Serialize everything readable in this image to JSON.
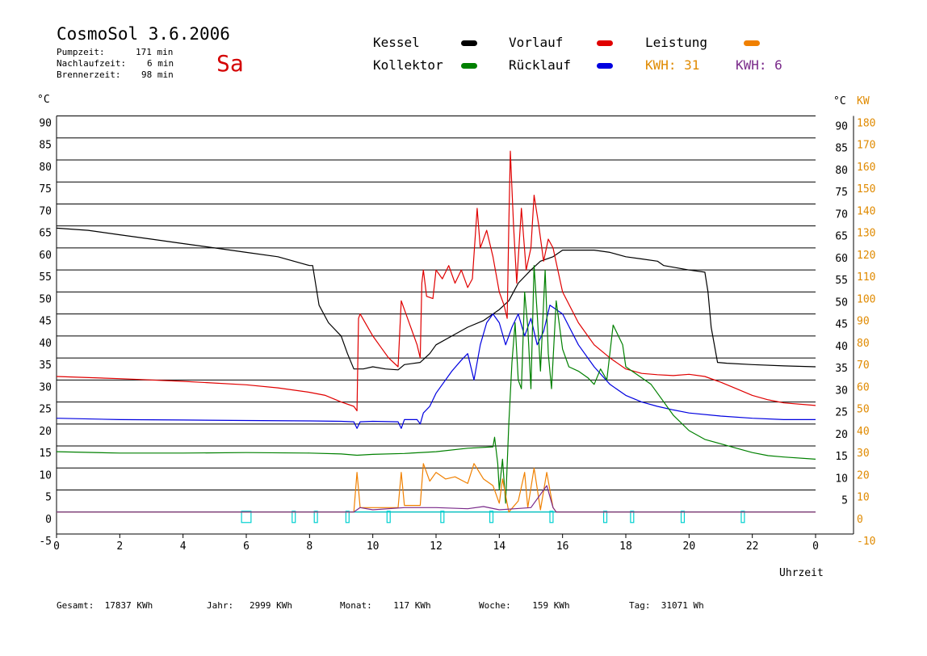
{
  "header": {
    "title": "CosmoSol 3.6.2006",
    "day": "Sa",
    "info": [
      {
        "label": "Pumpzeit:",
        "value": "171 min"
      },
      {
        "label": "Nachlaufzeit:",
        "value": "6 min"
      },
      {
        "label": "Brennerzeit:",
        "value": "98 min"
      }
    ]
  },
  "legend": {
    "items": [
      {
        "label": "Kessel",
        "color": "#000000"
      },
      {
        "label": "Kollektor",
        "color": "#008000"
      },
      {
        "label": "Vorlauf",
        "color": "#e00000"
      },
      {
        "label": "Rücklauf",
        "color": "#0000e0"
      },
      {
        "label": "Leistung",
        "color": "#f08000"
      }
    ],
    "kwh": [
      {
        "label": "KWH:",
        "value": "31",
        "color": "#e08a00"
      },
      {
        "label": "KWH:",
        "value": "6",
        "color": "#7a2a8a"
      }
    ]
  },
  "footer": [
    {
      "label": "Gesamt:",
      "value": "17837 KWh"
    },
    {
      "label": "Jahr:",
      "value": "2999 KWh"
    },
    {
      "label": "Monat:",
      "value": "117 KWh"
    },
    {
      "label": "Woche:",
      "value": "159 KWh"
    },
    {
      "label": "Tag:",
      "value": "31071 Wh"
    }
  ],
  "chart_data": {
    "type": "line",
    "xlabel": "Uhrzeit",
    "ylabel_left": "°C",
    "ylabel_right_temp": "°C",
    "ylabel_right_power": "KW",
    "xlim": [
      0,
      24
    ],
    "ylim": [
      -5,
      90
    ],
    "y2lim": [
      -10,
      180
    ],
    "x_ticks": [
      "0",
      "2",
      "4",
      "6",
      "8",
      "10",
      "12",
      "14",
      "16",
      "18",
      "20",
      "22",
      "0"
    ],
    "y_left_ticks": [
      "90",
      "85",
      "80",
      "75",
      "70",
      "65",
      "60",
      "55",
      "50",
      "45",
      "40",
      "35",
      "30",
      "25",
      "20",
      "15",
      "10",
      "5",
      "0",
      "-5"
    ],
    "y_right_temp_ticks": [
      "90",
      "85",
      "80",
      "75",
      "70",
      "65",
      "60",
      "55",
      "50",
      "45",
      "40",
      "35",
      "30",
      "25",
      "20",
      "15",
      "10",
      "5"
    ],
    "y_right_power_ticks": [
      "180",
      "170",
      "160",
      "150",
      "140",
      "130",
      "120",
      "110",
      "100",
      "90",
      "80",
      "70",
      "60",
      "50",
      "40",
      "30",
      "20",
      "10",
      "0",
      "-10"
    ],
    "series": [
      {
        "name": "Kessel",
        "color": "#000000",
        "points": [
          [
            0,
            64.5
          ],
          [
            1,
            64
          ],
          [
            2,
            63
          ],
          [
            3,
            62
          ],
          [
            4,
            61
          ],
          [
            5,
            60
          ],
          [
            6,
            59
          ],
          [
            7,
            58
          ],
          [
            8,
            56
          ],
          [
            8.1,
            56
          ],
          [
            8.3,
            47
          ],
          [
            8.6,
            43
          ],
          [
            9,
            40
          ],
          [
            9.2,
            36
          ],
          [
            9.4,
            32.5
          ],
          [
            9.7,
            32.5
          ],
          [
            10,
            33
          ],
          [
            10.4,
            32.5
          ],
          [
            10.8,
            32.3
          ],
          [
            11,
            33.5
          ],
          [
            11.5,
            34
          ],
          [
            11.8,
            36
          ],
          [
            12,
            38
          ],
          [
            12.5,
            40
          ],
          [
            13,
            42
          ],
          [
            13.5,
            43.5
          ],
          [
            14,
            46
          ],
          [
            14.3,
            48
          ],
          [
            14.6,
            52
          ],
          [
            15,
            55
          ],
          [
            15.3,
            57
          ],
          [
            15.7,
            58
          ],
          [
            16,
            59.5
          ],
          [
            16.5,
            59.5
          ],
          [
            17,
            59.5
          ],
          [
            17.5,
            59
          ],
          [
            18,
            58
          ],
          [
            18.5,
            57.5
          ],
          [
            19,
            57
          ],
          [
            19.2,
            56
          ],
          [
            20,
            55
          ],
          [
            20.5,
            54.5
          ],
          [
            20.6,
            50
          ],
          [
            20.7,
            42
          ],
          [
            20.9,
            34
          ],
          [
            21.2,
            33.8
          ],
          [
            22,
            33.5
          ],
          [
            23,
            33.2
          ],
          [
            24,
            33
          ]
        ]
      },
      {
        "name": "Vorlauf",
        "color": "#e00000",
        "points": [
          [
            0,
            30.8
          ],
          [
            2,
            30.3
          ],
          [
            4,
            29.7
          ],
          [
            6,
            28.9
          ],
          [
            7,
            28.2
          ],
          [
            8,
            27.2
          ],
          [
            8.5,
            26.5
          ],
          [
            9,
            25
          ],
          [
            9.4,
            24
          ],
          [
            9.5,
            23
          ],
          [
            9.55,
            44
          ],
          [
            9.6,
            45
          ],
          [
            10,
            40
          ],
          [
            10.3,
            37
          ],
          [
            10.5,
            35
          ],
          [
            10.8,
            33
          ],
          [
            10.9,
            48
          ],
          [
            11,
            46
          ],
          [
            11.4,
            38
          ],
          [
            11.5,
            35
          ],
          [
            11.55,
            52
          ],
          [
            11.6,
            55
          ],
          [
            11.7,
            49
          ],
          [
            11.9,
            48.5
          ],
          [
            12,
            55
          ],
          [
            12.2,
            53
          ],
          [
            12.4,
            56
          ],
          [
            12.6,
            52
          ],
          [
            12.8,
            55
          ],
          [
            13,
            51
          ],
          [
            13.15,
            53
          ],
          [
            13.3,
            69
          ],
          [
            13.4,
            60
          ],
          [
            13.6,
            64
          ],
          [
            13.8,
            58
          ],
          [
            14,
            50
          ],
          [
            14.15,
            47
          ],
          [
            14.25,
            44
          ],
          [
            14.3,
            65
          ],
          [
            14.35,
            82
          ],
          [
            14.45,
            65
          ],
          [
            14.55,
            52
          ],
          [
            14.7,
            69
          ],
          [
            14.85,
            55
          ],
          [
            15,
            60
          ],
          [
            15.1,
            72
          ],
          [
            15.25,
            65
          ],
          [
            15.4,
            57
          ],
          [
            15.55,
            62
          ],
          [
            15.7,
            60
          ],
          [
            15.85,
            55
          ],
          [
            16,
            50
          ],
          [
            16.5,
            43
          ],
          [
            17,
            38
          ],
          [
            17.5,
            35
          ],
          [
            18,
            32.5
          ],
          [
            18.5,
            31.5
          ],
          [
            19,
            31.2
          ],
          [
            19.5,
            31
          ],
          [
            20,
            31.3
          ],
          [
            20.5,
            30.8
          ],
          [
            21,
            29.5
          ],
          [
            21.5,
            28
          ],
          [
            22,
            26.5
          ],
          [
            22.5,
            25.5
          ],
          [
            23,
            24.8
          ],
          [
            24,
            24.2
          ]
        ]
      },
      {
        "name": "Rücklauf",
        "color": "#0000e0",
        "points": [
          [
            0,
            21.3
          ],
          [
            2,
            21
          ],
          [
            4,
            20.9
          ],
          [
            6,
            20.8
          ],
          [
            8,
            20.7
          ],
          [
            9,
            20.6
          ],
          [
            9.4,
            20.5
          ],
          [
            9.5,
            19
          ],
          [
            9.6,
            20.5
          ],
          [
            10,
            20.6
          ],
          [
            10.8,
            20.5
          ],
          [
            10.9,
            19
          ],
          [
            11,
            21
          ],
          [
            11.4,
            21
          ],
          [
            11.5,
            20
          ],
          [
            11.6,
            22.5
          ],
          [
            11.8,
            24
          ],
          [
            12,
            27
          ],
          [
            12.5,
            32
          ],
          [
            12.8,
            34.5
          ],
          [
            13,
            36
          ],
          [
            13.2,
            30
          ],
          [
            13.4,
            38
          ],
          [
            13.6,
            43
          ],
          [
            13.8,
            45
          ],
          [
            14,
            43
          ],
          [
            14.2,
            38
          ],
          [
            14.4,
            42
          ],
          [
            14.6,
            45
          ],
          [
            14.8,
            40
          ],
          [
            15,
            44
          ],
          [
            15.2,
            38
          ],
          [
            15.4,
            41
          ],
          [
            15.6,
            47
          ],
          [
            16,
            45
          ],
          [
            16.5,
            38
          ],
          [
            17,
            33
          ],
          [
            17.5,
            29
          ],
          [
            18,
            26.5
          ],
          [
            18.5,
            25
          ],
          [
            19,
            24
          ],
          [
            19.5,
            23.2
          ],
          [
            20,
            22.5
          ],
          [
            21,
            21.8
          ],
          [
            22,
            21.3
          ],
          [
            23,
            21
          ],
          [
            24,
            21
          ]
        ]
      },
      {
        "name": "Kollektor",
        "color": "#008000",
        "points": [
          [
            0,
            13.7
          ],
          [
            2,
            13.4
          ],
          [
            4,
            13.4
          ],
          [
            6,
            13.5
          ],
          [
            8,
            13.4
          ],
          [
            9,
            13.2
          ],
          [
            9.5,
            12.9
          ],
          [
            10,
            13.1
          ],
          [
            11,
            13.3
          ],
          [
            12,
            13.7
          ],
          [
            13,
            14.5
          ],
          [
            13.8,
            14.8
          ],
          [
            13.85,
            17
          ],
          [
            13.95,
            11
          ],
          [
            14,
            5
          ],
          [
            14.1,
            12
          ],
          [
            14.2,
            2
          ],
          [
            14.3,
            20
          ],
          [
            14.4,
            34
          ],
          [
            14.5,
            43
          ],
          [
            14.6,
            30
          ],
          [
            14.7,
            28
          ],
          [
            14.8,
            50
          ],
          [
            14.9,
            42
          ],
          [
            15,
            28
          ],
          [
            15.1,
            56
          ],
          [
            15.2,
            45
          ],
          [
            15.3,
            32
          ],
          [
            15.45,
            55
          ],
          [
            15.55,
            36
          ],
          [
            15.65,
            28
          ],
          [
            15.8,
            48
          ],
          [
            16,
            37
          ],
          [
            16.2,
            33
          ],
          [
            16.5,
            32
          ],
          [
            16.8,
            30.5
          ],
          [
            17,
            29
          ],
          [
            17.2,
            32.5
          ],
          [
            17.4,
            30
          ],
          [
            17.6,
            42.5
          ],
          [
            17.9,
            38
          ],
          [
            18,
            33
          ],
          [
            18.4,
            31
          ],
          [
            18.8,
            29
          ],
          [
            19,
            27
          ],
          [
            19.5,
            22
          ],
          [
            20,
            18.5
          ],
          [
            20.5,
            16.5
          ],
          [
            21,
            15.5
          ],
          [
            21.5,
            14.5
          ],
          [
            22,
            13.5
          ],
          [
            22.5,
            12.8
          ],
          [
            23,
            12.5
          ],
          [
            24,
            12
          ]
        ]
      },
      {
        "name": "Leistung",
        "color": "#f08000",
        "axis": "power",
        "points": [
          [
            0,
            0
          ],
          [
            9.4,
            0
          ],
          [
            9.5,
            18
          ],
          [
            9.6,
            2
          ],
          [
            10.8,
            2
          ],
          [
            10.9,
            18
          ],
          [
            11,
            3
          ],
          [
            11.5,
            3
          ],
          [
            11.6,
            22
          ],
          [
            11.8,
            14
          ],
          [
            12,
            18
          ],
          [
            12.3,
            15
          ],
          [
            12.6,
            16
          ],
          [
            13,
            13
          ],
          [
            13.2,
            22
          ],
          [
            13.5,
            15
          ],
          [
            13.8,
            12
          ],
          [
            14,
            4
          ],
          [
            14.1,
            15
          ],
          [
            14.3,
            0
          ],
          [
            14.6,
            5
          ],
          [
            14.8,
            18
          ],
          [
            14.9,
            2
          ],
          [
            15.1,
            20
          ],
          [
            15.3,
            1
          ],
          [
            15.5,
            18
          ],
          [
            15.7,
            2
          ],
          [
            15.8,
            0
          ],
          [
            24,
            0
          ]
        ]
      },
      {
        "name": "Leistung 2",
        "color": "#7a2a8a",
        "axis": "power",
        "points": [
          [
            0,
            0
          ],
          [
            9.4,
            0
          ],
          [
            9.6,
            2
          ],
          [
            10,
            1
          ],
          [
            11,
            2
          ],
          [
            12,
            2
          ],
          [
            13,
            1.5
          ],
          [
            13.5,
            2.5
          ],
          [
            14,
            1
          ],
          [
            14.5,
            1.5
          ],
          [
            15,
            2
          ],
          [
            15.5,
            12
          ],
          [
            15.7,
            2
          ],
          [
            15.8,
            0
          ],
          [
            24,
            0
          ]
        ]
      }
    ],
    "pump_marks": [
      [
        5.85,
        6.15
      ],
      [
        7.45,
        7.55
      ],
      [
        8.15,
        8.25
      ],
      [
        9.15,
        9.25
      ],
      [
        10.45,
        10.55
      ],
      [
        12.15,
        12.25
      ],
      [
        13.7,
        13.8
      ],
      [
        15.6,
        15.7
      ],
      [
        17.3,
        17.4
      ],
      [
        18.15,
        18.25
      ],
      [
        19.75,
        19.85
      ],
      [
        21.65,
        21.75
      ]
    ],
    "pump_color": "#00d0d0",
    "grid": true
  }
}
